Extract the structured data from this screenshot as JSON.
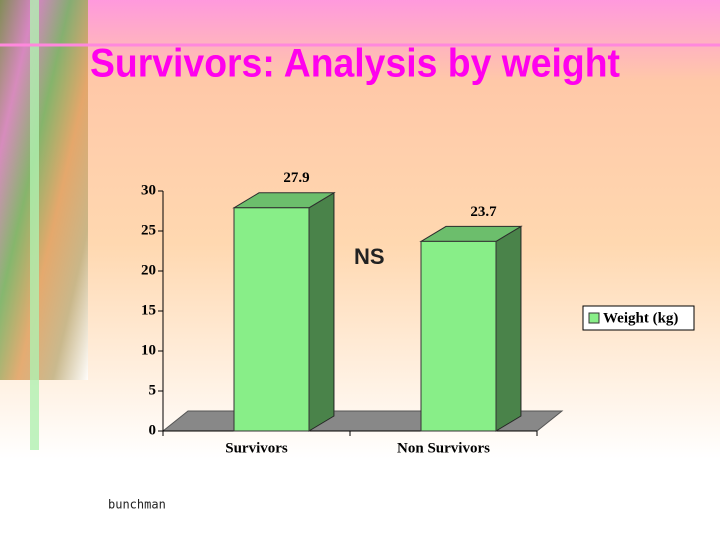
{
  "title": "Survivors:  Analysis by weight",
  "annotation": "NS",
  "footer": "bunchman",
  "chart_data": {
    "type": "bar3d",
    "categories": [
      "Survivors",
      "Non Survivors"
    ],
    "series": [
      {
        "name": "Weight (kg)",
        "color": "#88ee88",
        "values": [
          27.9,
          23.7
        ]
      }
    ],
    "ylim": [
      0,
      30
    ],
    "yticks": [
      0,
      5,
      10,
      15,
      20,
      25,
      30
    ],
    "grid": false,
    "legend": "right"
  }
}
